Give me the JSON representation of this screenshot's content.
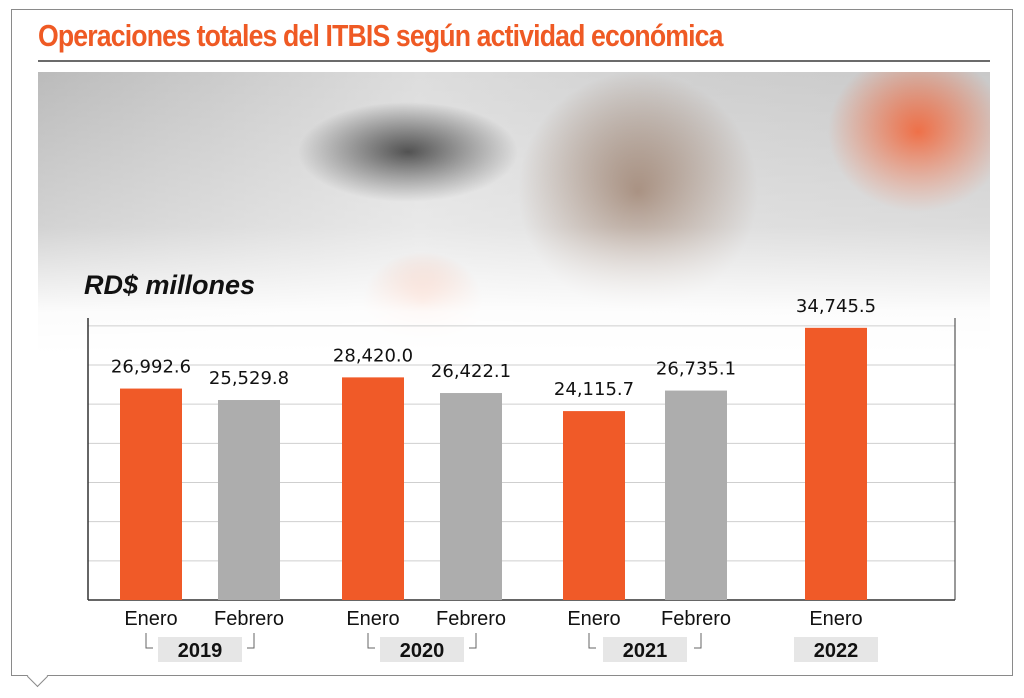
{
  "chart_data": {
    "type": "bar",
    "title": "Operaciones totales del ITBIS según actividad económica",
    "ylabel": "RD$ millones",
    "xlabel": "",
    "ylim": [
      0,
      36000
    ],
    "grid": true,
    "categories": [
      "Enero",
      "Febrero",
      "Enero",
      "Febrero",
      "Enero",
      "Febrero",
      "Enero"
    ],
    "groups": [
      {
        "year": "2019",
        "indices": [
          0,
          1
        ]
      },
      {
        "year": "2020",
        "indices": [
          2,
          3
        ]
      },
      {
        "year": "2021",
        "indices": [
          4,
          5
        ]
      },
      {
        "year": "2022",
        "indices": [
          6
        ]
      }
    ],
    "values": [
      26992.6,
      25529.8,
      28420.0,
      26422.1,
      24115.7,
      26735.1,
      34745.5
    ],
    "value_labels": [
      "26,992.6",
      "25,529.8",
      "28,420.0",
      "26,422.1",
      "24,115.7",
      "26,735.1",
      "34,745.5"
    ],
    "colors": [
      "#F05A28",
      "#ADADAD",
      "#F05A28",
      "#ADADAD",
      "#F05A28",
      "#ADADAD",
      "#F05A28"
    ]
  }
}
